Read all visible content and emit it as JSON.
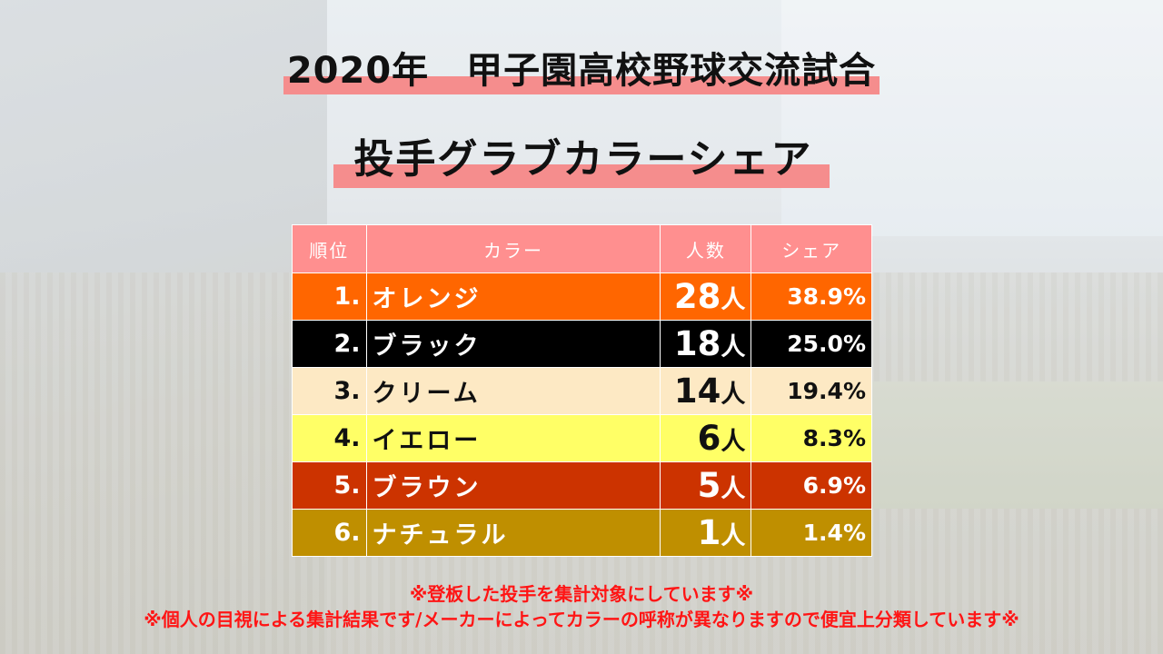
{
  "title_line1": "2020年　甲子園高校野球交流試合",
  "title_line2": "投手グラブカラーシェア",
  "table": {
    "headers": {
      "rank": "順位",
      "color": "カラー",
      "count": "人数",
      "share": "シェア"
    },
    "rows": [
      {
        "rank": "1.",
        "name": "オレンジ",
        "count": "28",
        "unit": "人",
        "share": "38.9%",
        "bg": "#ff6600",
        "fg": "#ffffff"
      },
      {
        "rank": "2.",
        "name": "ブラック",
        "count": "18",
        "unit": "人",
        "share": "25.0%",
        "bg": "#000000",
        "fg": "#ffffff"
      },
      {
        "rank": "3.",
        "name": "クリーム",
        "count": "14",
        "unit": "人",
        "share": "19.4%",
        "bg": "#fde9c4",
        "fg": "#111111"
      },
      {
        "rank": "4.",
        "name": "イエロー",
        "count": "6",
        "unit": "人",
        "share": "8.3%",
        "bg": "#ffff66",
        "fg": "#111111"
      },
      {
        "rank": "5.",
        "name": "ブラウン",
        "count": "5",
        "unit": "人",
        "share": "6.9%",
        "bg": "#cc3300",
        "fg": "#ffffff"
      },
      {
        "rank": "6.",
        "name": "ナチュラル",
        "count": "1",
        "unit": "人",
        "share": "1.4%",
        "bg": "#bf8f00",
        "fg": "#ffffff"
      }
    ]
  },
  "notes": {
    "line1": "※登板した投手を集計対象にしています※",
    "line2": "※個人の目視による集計結果です/メーカーによってカラーの呼称が異なりますので便宜上分類しています※"
  },
  "colors": {
    "highlight": "#f58d8d",
    "header_bg": "#ff8f8f",
    "note_text": "#ff1515"
  }
}
